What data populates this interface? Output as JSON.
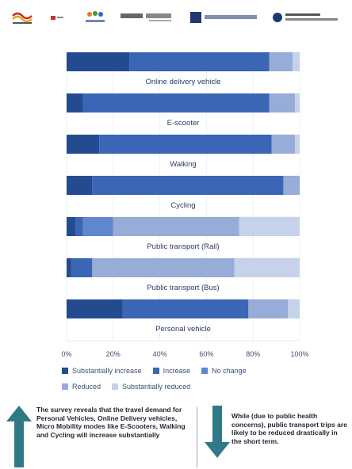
{
  "logos": [
    "partner-logo-1",
    "partner-logo-2",
    "partner-logo-3",
    "partner-logo-4",
    "partner-logo-5",
    "partner-logo-6"
  ],
  "chart_data": {
    "type": "bar",
    "orientation": "horizontal",
    "stacked": true,
    "percent_stacked": true,
    "categories": [
      "Online delivery vehicle",
      "E-scooter",
      "Walking",
      "Cycling",
      "Public transport (Rail)",
      "Public transport (Bus)",
      "Personal vehicle"
    ],
    "series": [
      {
        "name": "Substantially increase",
        "color": "#244b8f",
        "values": [
          27,
          7,
          14,
          11,
          4,
          2,
          24
        ]
      },
      {
        "name": "Increase",
        "color": "#3a66b5",
        "values": [
          60,
          80,
          74,
          82,
          3,
          9,
          54
        ]
      },
      {
        "name": "No change",
        "color": "#5f86cf",
        "values": [
          0,
          0,
          0,
          0,
          13,
          0,
          0
        ]
      },
      {
        "name": "Reduced",
        "color": "#97acd6",
        "values": [
          10,
          11,
          10,
          7,
          54,
          61,
          17
        ]
      },
      {
        "name": "Substantially reduced",
        "color": "#c6d1ea",
        "values": [
          3,
          2,
          2,
          0,
          26,
          28,
          5
        ]
      }
    ],
    "x_ticks": [
      "0%",
      "20%",
      "40%",
      "60%",
      "80%",
      "100%"
    ],
    "xlim": [
      0,
      100
    ],
    "grid": true,
    "legend_position": "bottom"
  },
  "notes": {
    "left": "The survey reveals that the travel demand for Personal Vehicles, Online Delivery vehicles, Micro Mobility modes like E-Scooters, Walking and Cycling will increase substantially",
    "right": "While (due to public health concerns), public transport trips are likely to be reduced drastically in the short term."
  },
  "arrow_color": "#2f7a86"
}
